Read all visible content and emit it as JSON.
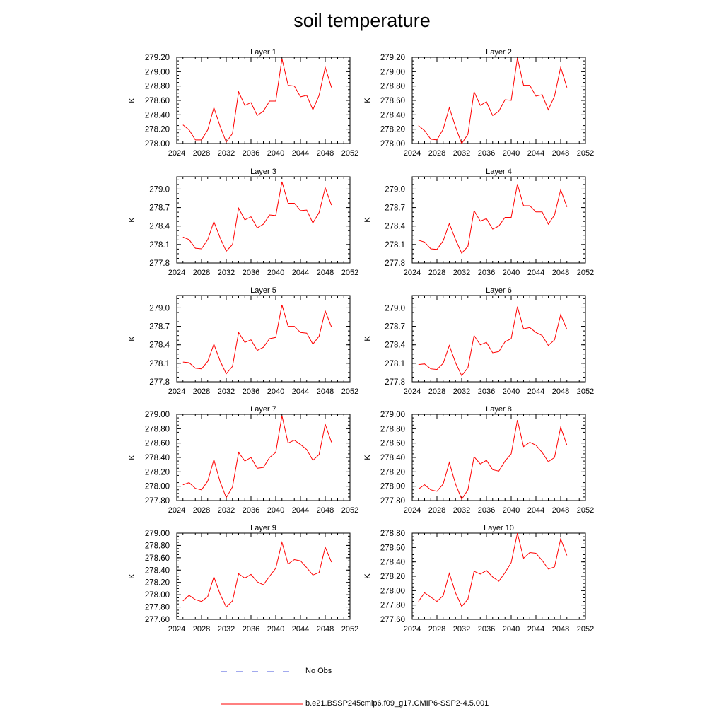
{
  "title": "soil temperature",
  "legend": [
    {
      "label": "No Obs",
      "color": "#4455dd",
      "dash": "9,13"
    },
    {
      "label": "b.e21.BSSP245cmip6.f09_g17.CMIP6-SSP2-4.5.001",
      "color": "#ff0000",
      "dash": ""
    }
  ],
  "chart_data": [
    {
      "type": "line",
      "title": "Layer 1",
      "ylabel": "K",
      "xlim": [
        2024,
        2052
      ],
      "xticks": [
        "2024",
        "2028",
        "2032",
        "2036",
        "2040",
        "2044",
        "2048",
        "2052"
      ],
      "ylim": [
        278.0,
        279.2
      ],
      "yticks": [
        "278.00",
        "278.20",
        "278.40",
        "278.60",
        "278.80",
        "279.00",
        "279.20"
      ],
      "x": [
        2025,
        2026,
        2027,
        2028,
        2029,
        2030,
        2031,
        2032,
        2033,
        2034,
        2035,
        2036,
        2037,
        2038,
        2039,
        2040,
        2041,
        2042,
        2043,
        2044,
        2045,
        2046,
        2047,
        2048,
        2049
      ],
      "series": [
        {
          "color": "#ff0000",
          "values": [
            278.26,
            278.19,
            278.05,
            278.05,
            278.19,
            278.5,
            278.24,
            278.02,
            278.14,
            278.72,
            278.53,
            278.57,
            278.39,
            278.45,
            278.59,
            278.59,
            279.18,
            278.81,
            278.8,
            278.65,
            278.67,
            278.47,
            278.67,
            279.06,
            278.78
          ]
        }
      ]
    },
    {
      "type": "line",
      "title": "Layer 2",
      "ylabel": "K",
      "xlim": [
        2024,
        2052
      ],
      "xticks": [
        "2024",
        "2028",
        "2032",
        "2036",
        "2040",
        "2044",
        "2048",
        "2052"
      ],
      "ylim": [
        278.0,
        279.2
      ],
      "yticks": [
        "278.00",
        "278.20",
        "278.40",
        "278.60",
        "278.80",
        "279.00",
        "279.20"
      ],
      "x": [
        2025,
        2026,
        2027,
        2028,
        2029,
        2030,
        2031,
        2032,
        2033,
        2034,
        2035,
        2036,
        2037,
        2038,
        2039,
        2040,
        2041,
        2042,
        2043,
        2044,
        2045,
        2046,
        2047,
        2048,
        2049
      ],
      "series": [
        {
          "color": "#ff0000",
          "values": [
            278.25,
            278.18,
            278.06,
            278.05,
            278.2,
            278.5,
            278.23,
            278.0,
            278.13,
            278.72,
            278.53,
            278.58,
            278.39,
            278.45,
            278.61,
            278.6,
            279.19,
            278.81,
            278.81,
            278.66,
            278.68,
            278.47,
            278.66,
            279.06,
            278.78
          ]
        }
      ]
    },
    {
      "type": "line",
      "title": "Layer 3",
      "ylabel": "K",
      "xlim": [
        2024,
        2052
      ],
      "xticks": [
        "2024",
        "2028",
        "2032",
        "2036",
        "2040",
        "2044",
        "2048",
        "2052"
      ],
      "ylim": [
        277.8,
        279.2
      ],
      "yticks": [
        "277.8",
        "278.1",
        "278.4",
        "278.7",
        "279.0"
      ],
      "x": [
        2025,
        2026,
        2027,
        2028,
        2029,
        2030,
        2031,
        2032,
        2033,
        2034,
        2035,
        2036,
        2037,
        2038,
        2039,
        2040,
        2041,
        2042,
        2043,
        2044,
        2045,
        2046,
        2047,
        2048,
        2049
      ],
      "series": [
        {
          "color": "#ff0000",
          "values": [
            278.22,
            278.18,
            278.04,
            278.03,
            278.18,
            278.47,
            278.21,
            277.99,
            278.1,
            278.69,
            278.5,
            278.55,
            278.37,
            278.43,
            278.58,
            278.57,
            279.12,
            278.77,
            278.77,
            278.65,
            278.66,
            278.45,
            278.62,
            279.02,
            278.74
          ]
        }
      ]
    },
    {
      "type": "line",
      "title": "Layer 4",
      "ylabel": "K",
      "xlim": [
        2024,
        2052
      ],
      "xticks": [
        "2024",
        "2028",
        "2032",
        "2036",
        "2040",
        "2044",
        "2048",
        "2052"
      ],
      "ylim": [
        277.8,
        279.2
      ],
      "yticks": [
        "277.8",
        "278.1",
        "278.4",
        "278.7",
        "279.0"
      ],
      "x": [
        2025,
        2026,
        2027,
        2028,
        2029,
        2030,
        2031,
        2032,
        2033,
        2034,
        2035,
        2036,
        2037,
        2038,
        2039,
        2040,
        2041,
        2042,
        2043,
        2044,
        2045,
        2046,
        2047,
        2048,
        2049
      ],
      "series": [
        {
          "color": "#ff0000",
          "values": [
            278.17,
            278.14,
            278.03,
            278.02,
            278.16,
            278.44,
            278.18,
            277.96,
            278.07,
            278.65,
            278.48,
            278.52,
            278.35,
            278.4,
            278.54,
            278.54,
            279.08,
            278.73,
            278.73,
            278.63,
            278.63,
            278.43,
            278.58,
            278.99,
            278.71
          ]
        }
      ]
    },
    {
      "type": "line",
      "title": "Layer 5",
      "ylabel": "K",
      "xlim": [
        2024,
        2052
      ],
      "xticks": [
        "2024",
        "2028",
        "2032",
        "2036",
        "2040",
        "2044",
        "2048",
        "2052"
      ],
      "ylim": [
        277.8,
        279.2
      ],
      "yticks": [
        "277.8",
        "278.1",
        "278.4",
        "278.7",
        "279.0"
      ],
      "x": [
        2025,
        2026,
        2027,
        2028,
        2029,
        2030,
        2031,
        2032,
        2033,
        2034,
        2035,
        2036,
        2037,
        2038,
        2039,
        2040,
        2041,
        2042,
        2043,
        2044,
        2045,
        2046,
        2047,
        2048,
        2049
      ],
      "series": [
        {
          "color": "#ff0000",
          "values": [
            278.12,
            278.11,
            278.02,
            278.01,
            278.13,
            278.41,
            278.14,
            277.93,
            278.05,
            278.6,
            278.44,
            278.48,
            278.31,
            278.36,
            278.5,
            278.52,
            279.05,
            278.7,
            278.7,
            278.6,
            278.59,
            278.41,
            278.54,
            278.95,
            278.69
          ]
        }
      ]
    },
    {
      "type": "line",
      "title": "Layer 6",
      "ylabel": "K",
      "xlim": [
        2024,
        2052
      ],
      "xticks": [
        "2024",
        "2028",
        "2032",
        "2036",
        "2040",
        "2044",
        "2048",
        "2052"
      ],
      "ylim": [
        277.8,
        279.2
      ],
      "yticks": [
        "277.8",
        "278.1",
        "278.4",
        "278.7",
        "279.0"
      ],
      "x": [
        2025,
        2026,
        2027,
        2028,
        2029,
        2030,
        2031,
        2032,
        2033,
        2034,
        2035,
        2036,
        2037,
        2038,
        2039,
        2040,
        2041,
        2042,
        2043,
        2044,
        2045,
        2046,
        2047,
        2048,
        2049
      ],
      "series": [
        {
          "color": "#ff0000",
          "values": [
            278.08,
            278.09,
            278.01,
            278.0,
            278.1,
            278.39,
            278.11,
            277.9,
            278.03,
            278.55,
            278.4,
            278.44,
            278.27,
            278.29,
            278.45,
            278.5,
            279.02,
            278.66,
            278.68,
            278.6,
            278.55,
            278.39,
            278.48,
            278.89,
            278.65
          ]
        }
      ]
    },
    {
      "type": "line",
      "title": "Layer 7",
      "ylabel": "K",
      "xlim": [
        2024,
        2052
      ],
      "xticks": [
        "2024",
        "2028",
        "2032",
        "2036",
        "2040",
        "2044",
        "2048",
        "2052"
      ],
      "ylim": [
        277.8,
        279.0
      ],
      "yticks": [
        "277.80",
        "278.00",
        "278.20",
        "278.40",
        "278.60",
        "278.80",
        "279.00"
      ],
      "x": [
        2025,
        2026,
        2027,
        2028,
        2029,
        2030,
        2031,
        2032,
        2033,
        2034,
        2035,
        2036,
        2037,
        2038,
        2039,
        2040,
        2041,
        2042,
        2043,
        2044,
        2045,
        2046,
        2047,
        2048,
        2049
      ],
      "series": [
        {
          "color": "#ff0000",
          "values": [
            278.02,
            278.05,
            277.97,
            277.95,
            278.07,
            278.37,
            278.06,
            277.84,
            277.99,
            278.47,
            278.35,
            278.4,
            278.25,
            278.26,
            278.4,
            278.47,
            278.98,
            278.6,
            278.64,
            278.58,
            278.51,
            278.36,
            278.44,
            278.86,
            278.61
          ]
        }
      ]
    },
    {
      "type": "line",
      "title": "Layer 8",
      "ylabel": "K",
      "xlim": [
        2024,
        2052
      ],
      "xticks": [
        "2024",
        "2028",
        "2032",
        "2036",
        "2040",
        "2044",
        "2048",
        "2052"
      ],
      "ylim": [
        277.8,
        279.0
      ],
      "yticks": [
        "277.80",
        "278.00",
        "278.20",
        "278.40",
        "278.60",
        "278.80",
        "279.00"
      ],
      "x": [
        2025,
        2026,
        2027,
        2028,
        2029,
        2030,
        2031,
        2032,
        2033,
        2034,
        2035,
        2036,
        2037,
        2038,
        2039,
        2040,
        2041,
        2042,
        2043,
        2044,
        2045,
        2046,
        2047,
        2048,
        2049
      ],
      "series": [
        {
          "color": "#ff0000",
          "values": [
            277.96,
            278.02,
            277.95,
            277.93,
            278.03,
            278.33,
            278.03,
            277.82,
            277.95,
            278.41,
            278.31,
            278.36,
            278.23,
            278.21,
            278.35,
            278.45,
            278.92,
            278.55,
            278.61,
            278.57,
            278.47,
            278.34,
            278.4,
            278.82,
            278.57
          ]
        }
      ]
    },
    {
      "type": "line",
      "title": "Layer 9",
      "ylabel": "K",
      "xlim": [
        2024,
        2052
      ],
      "xticks": [
        "2024",
        "2028",
        "2032",
        "2036",
        "2040",
        "2044",
        "2048",
        "2052"
      ],
      "ylim": [
        277.6,
        279.0
      ],
      "yticks": [
        "277.60",
        "277.80",
        "278.00",
        "278.20",
        "278.40",
        "278.60",
        "278.80",
        "279.00"
      ],
      "x": [
        2025,
        2026,
        2027,
        2028,
        2029,
        2030,
        2031,
        2032,
        2033,
        2034,
        2035,
        2036,
        2037,
        2038,
        2039,
        2040,
        2041,
        2042,
        2043,
        2044,
        2045,
        2046,
        2047,
        2048,
        2049
      ],
      "series": [
        {
          "color": "#ff0000",
          "values": [
            277.9,
            277.99,
            277.92,
            277.89,
            277.97,
            278.29,
            278.01,
            277.8,
            277.9,
            278.34,
            278.27,
            278.33,
            278.21,
            278.16,
            278.3,
            278.43,
            278.85,
            278.5,
            278.57,
            278.55,
            278.44,
            278.32,
            278.36,
            278.77,
            278.53
          ]
        }
      ]
    },
    {
      "type": "line",
      "title": "Layer 10",
      "ylabel": "K",
      "xlim": [
        2024,
        2052
      ],
      "xticks": [
        "2024",
        "2028",
        "2032",
        "2036",
        "2040",
        "2044",
        "2048",
        "2052"
      ],
      "ylim": [
        277.6,
        278.8
      ],
      "yticks": [
        "277.60",
        "277.80",
        "278.00",
        "278.20",
        "278.40",
        "278.60",
        "278.80"
      ],
      "x": [
        2025,
        2026,
        2027,
        2028,
        2029,
        2030,
        2031,
        2032,
        2033,
        2034,
        2035,
        2036,
        2037,
        2038,
        2039,
        2040,
        2041,
        2042,
        2043,
        2044,
        2045,
        2046,
        2047,
        2048,
        2049
      ],
      "series": [
        {
          "color": "#ff0000",
          "values": [
            277.85,
            277.97,
            277.91,
            277.85,
            277.93,
            278.24,
            277.97,
            277.78,
            277.88,
            278.27,
            278.23,
            278.28,
            278.19,
            278.13,
            278.25,
            278.39,
            278.8,
            278.45,
            278.53,
            278.52,
            278.42,
            278.3,
            278.33,
            278.72,
            278.49
          ]
        }
      ]
    }
  ]
}
